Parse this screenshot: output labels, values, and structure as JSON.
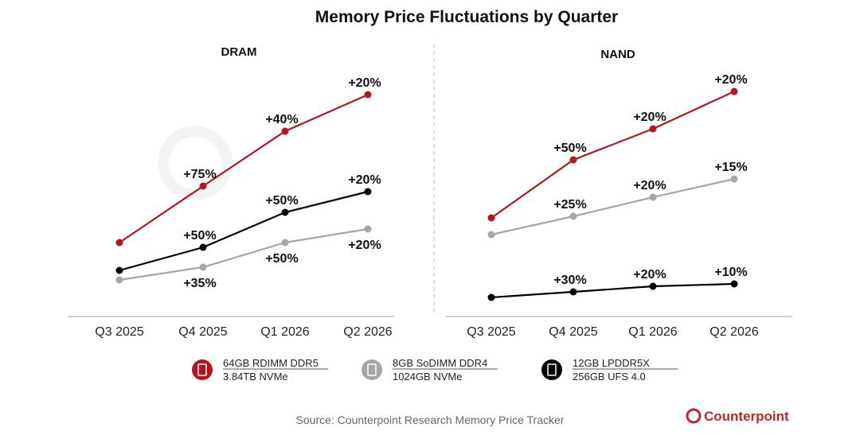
{
  "chart_data": [
    {
      "type": "line",
      "title": "Memory Price Fluctuations by Quarter",
      "panel": "DRAM",
      "categories": [
        "Q3 2025",
        "Q4 2025",
        "Q1 2026",
        "Q2 2026"
      ],
      "series": [
        {
          "name": "64GB RDIMM DDR5",
          "color": "#b5161e",
          "changes": [
            "",
            "+75%",
            "+40%",
            "+20%"
          ]
        },
        {
          "name": "12GB LPDDR5X",
          "color": "#000000",
          "changes": [
            "",
            "+50%",
            "+50%",
            "+20%"
          ]
        },
        {
          "name": "8GB SoDIMM DDR4",
          "color": "#a6a6a6",
          "changes": [
            "",
            "+35%",
            "+50%",
            "+20%"
          ]
        }
      ],
      "grid": false
    },
    {
      "type": "line",
      "panel": "NAND",
      "categories": [
        "Q3 2025",
        "Q4 2025",
        "Q1 2026",
        "Q2 2026"
      ],
      "series": [
        {
          "name": "3.84TB NVMe",
          "color": "#b5161e",
          "changes": [
            "",
            "+50%",
            "+20%",
            "+20%"
          ]
        },
        {
          "name": "1024GB NVMe",
          "color": "#a6a6a6",
          "changes": [
            "",
            "+25%",
            "+20%",
            "+15%"
          ]
        },
        {
          "name": "256GB UFS 4.0",
          "color": "#000000",
          "changes": [
            "",
            "+30%",
            "+20%",
            "+10%"
          ]
        }
      ],
      "grid": false
    }
  ],
  "legend": [
    {
      "line1": "64GB RDIMM DDR5",
      "line2": "3.84TB NVMe",
      "color": "#b5161e",
      "icon": "server-icon"
    },
    {
      "line1": "8GB SoDIMM DDR4",
      "line2": "1024GB NVMe",
      "color": "#a6a6a6",
      "icon": "desktop-icon"
    },
    {
      "line1": "12GB LPDDR5X",
      "line2": "256GB UFS 4.0",
      "color": "#000000",
      "icon": "phone-icon"
    }
  ],
  "source": "Source: Counterpoint Research Memory Price Tracker",
  "brand": "Counterpoint"
}
